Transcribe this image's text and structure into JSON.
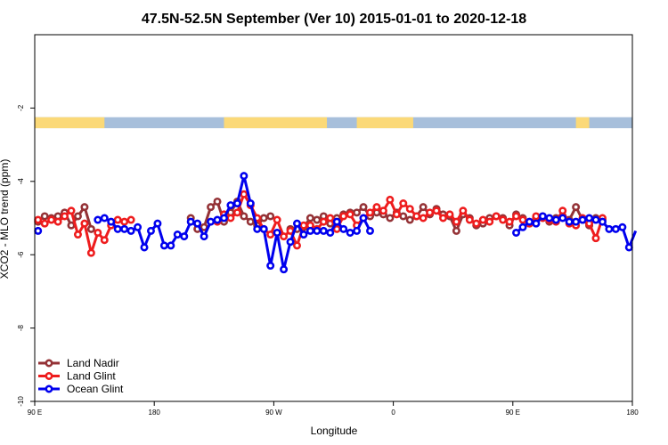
{
  "chart_data": {
    "type": "line",
    "title": "47.5N-52.5N September (Ver 10)   2015-01-01 to 2020-12-18",
    "xlabel": "Longitude",
    "ylabel": "XCO2 - MLO trend (ppm)",
    "xlim": [
      0,
      360
    ],
    "ylim": [
      -10,
      0
    ],
    "x_ticks": [
      {
        "x": 0,
        "label": "90 E"
      },
      {
        "x": 72,
        "label": "180"
      },
      {
        "x": 144,
        "label": "90 W"
      },
      {
        "x": 216,
        "label": "0"
      },
      {
        "x": 288,
        "label": "90 E"
      },
      {
        "x": 360,
        "label": "180"
      }
    ],
    "y_ticks": [
      {
        "y": -2,
        "label": "-2"
      },
      {
        "y": -4,
        "label": "-4"
      },
      {
        "y": -6,
        "label": "-6"
      },
      {
        "y": -8,
        "label": "-8"
      },
      {
        "y": -10,
        "label": "-10"
      }
    ],
    "grid": false,
    "legend_position": "bottom-left",
    "land_ocean_strip": {
      "y_range": [
        -2.55,
        -2.25
      ],
      "land_color": "#fbd978",
      "ocean_color": "#a7bfdb",
      "land_segments": [
        [
          0,
          42
        ],
        [
          114,
          176
        ],
        [
          194,
          228
        ],
        [
          326,
          334
        ]
      ]
    },
    "series": [
      {
        "name": "Land Nadir",
        "color": "#943236",
        "x": [
          2,
          6,
          10,
          14,
          18,
          22,
          26,
          30,
          34,
          94,
          98,
          102,
          106,
          110,
          114,
          118,
          122,
          126,
          130,
          134,
          138,
          142,
          154,
          158,
          162,
          166,
          170,
          174,
          178,
          182,
          186,
          190,
          194,
          198,
          202,
          206,
          210,
          214,
          218,
          222,
          226,
          230,
          234,
          238,
          242,
          246,
          250,
          254,
          258,
          262,
          266,
          270,
          274,
          278,
          282,
          286,
          290,
          294,
          298,
          302,
          306,
          310,
          314,
          318,
          322,
          326,
          330,
          334,
          338,
          342
        ],
        "y": [
          -5.1,
          -4.95,
          -5.0,
          -4.95,
          -4.85,
          -5.2,
          -4.95,
          -4.7,
          -5.3,
          -5.0,
          -5.3,
          -5.25,
          -4.7,
          -4.55,
          -5.1,
          -4.85,
          -4.55,
          -4.95,
          -5.1,
          -5.2,
          -5.0,
          -4.95,
          -5.3,
          -5.3,
          -5.25,
          -5.0,
          -5.05,
          -4.95,
          -5.15,
          -5.0,
          -4.9,
          -4.85,
          -4.85,
          -4.7,
          -4.95,
          -4.85,
          -4.9,
          -5.0,
          -4.85,
          -4.95,
          -5.05,
          -4.95,
          -4.7,
          -4.9,
          -4.75,
          -4.9,
          -4.95,
          -5.35,
          -4.9,
          -5.0,
          -5.2,
          -5.15,
          -5.0,
          -4.95,
          -5.0,
          -5.2,
          -4.9,
          -5.0,
          -5.15,
          -5.0,
          -4.95,
          -5.1,
          -5.0,
          -4.95,
          -5.05,
          -4.7,
          -5.05,
          -5.2,
          -5.0,
          -5.05
        ]
      },
      {
        "name": "Land Glint",
        "color": "#ee1c1d",
        "x": [
          2,
          6,
          10,
          14,
          18,
          22,
          26,
          30,
          34,
          38,
          42,
          46,
          50,
          54,
          58,
          110,
          114,
          118,
          122,
          126,
          130,
          134,
          138,
          142,
          146,
          150,
          154,
          158,
          162,
          166,
          170,
          174,
          178,
          182,
          186,
          190,
          194,
          198,
          202,
          206,
          210,
          214,
          218,
          222,
          226,
          230,
          234,
          238,
          242,
          246,
          250,
          254,
          258,
          262,
          266,
          270,
          274,
          278,
          282,
          286,
          290,
          294,
          298,
          302,
          306,
          310,
          314,
          318,
          322,
          326,
          330,
          334,
          338,
          342
        ],
        "y": [
          -5.05,
          -5.15,
          -5.05,
          -5.1,
          -4.95,
          -4.8,
          -5.45,
          -5.15,
          -5.95,
          -5.4,
          -5.6,
          -5.2,
          -5.05,
          -5.1,
          -5.05,
          -5.1,
          -4.9,
          -5.0,
          -4.85,
          -4.35,
          -4.65,
          -5.0,
          -5.3,
          -5.45,
          -5.05,
          -5.5,
          -5.35,
          -5.75,
          -5.2,
          -5.2,
          -5.3,
          -5.1,
          -5.0,
          -5.3,
          -4.95,
          -4.9,
          -5.2,
          -5.0,
          -4.85,
          -4.7,
          -4.8,
          -4.5,
          -4.9,
          -4.6,
          -4.75,
          -4.95,
          -5.0,
          -4.85,
          -4.8,
          -5.0,
          -4.9,
          -5.1,
          -4.8,
          -5.05,
          -5.15,
          -5.05,
          -5.1,
          -4.95,
          -5.05,
          -5.1,
          -4.95,
          -5.05,
          -5.15,
          -4.95,
          -5.0,
          -5.05,
          -5.1,
          -4.8,
          -5.15,
          -5.2,
          -5.0,
          -5.15,
          -5.55,
          -5.0
        ]
      },
      {
        "name": "Ocean Glint",
        "color": "#0000ee",
        "x": [
          2,
          38,
          42,
          46,
          50,
          54,
          58,
          62,
          66,
          70,
          74,
          78,
          82,
          86,
          90,
          94,
          98,
          102,
          106,
          110,
          114,
          118,
          122,
          126,
          130,
          134,
          138,
          142,
          146,
          150,
          154,
          158,
          162,
          166,
          170,
          174,
          178,
          182,
          186,
          190,
          194,
          198,
          202,
          290,
          294,
          298,
          302,
          306,
          310,
          314,
          318,
          322,
          326,
          330,
          334,
          338,
          342,
          346,
          350,
          354,
          358,
          362
        ],
        "y": [
          -5.35,
          -5.05,
          -5.0,
          -5.1,
          -5.3,
          -5.3,
          -5.35,
          -5.25,
          -5.8,
          -5.35,
          -5.15,
          -5.75,
          -5.75,
          -5.45,
          -5.5,
          -5.1,
          -5.15,
          -5.5,
          -5.1,
          -5.05,
          -5.0,
          -4.65,
          -4.6,
          -3.85,
          -4.6,
          -5.3,
          -5.3,
          -6.3,
          -5.4,
          -6.4,
          -5.65,
          -5.15,
          -5.45,
          -5.35,
          -5.35,
          -5.35,
          -5.4,
          -5.1,
          -5.3,
          -5.4,
          -5.35,
          -5.0,
          -5.35,
          -5.4,
          -5.25,
          -5.1,
          -5.15,
          -4.95,
          -5.0,
          -5.05,
          -5.0,
          -5.1,
          -5.1,
          -5.05,
          -5.0,
          -5.05,
          -5.1,
          -5.3,
          -5.3,
          -5.25,
          -5.8,
          -5.35
        ]
      }
    ]
  }
}
